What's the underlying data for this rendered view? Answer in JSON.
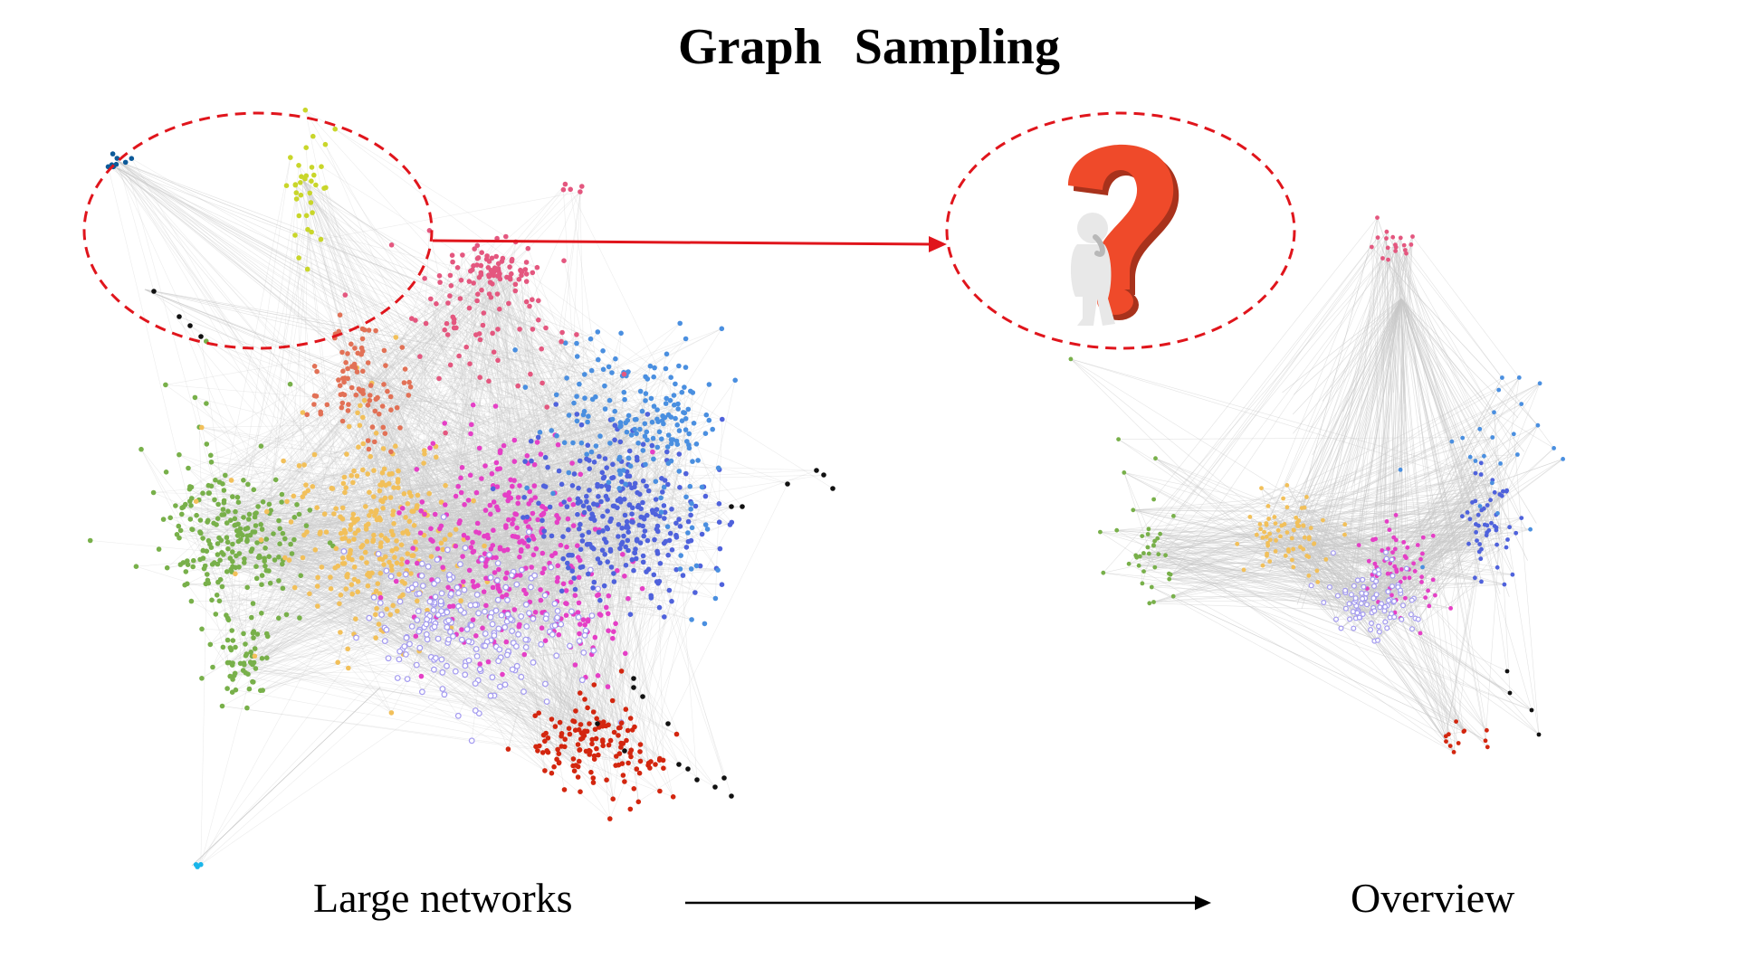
{
  "title": "Graph   Sampling",
  "captions": {
    "left": "Large networks",
    "right": "Overview"
  },
  "colors": {
    "edge": "#c8c8c8",
    "highlight_ellipse": "#e0151c",
    "connector_arrow": "#e0151c",
    "bottom_arrow": "#000000",
    "question_mark": "#ef4a2a",
    "figure": "#e8e8e8"
  },
  "clusters": [
    {
      "name": "green",
      "color": "#78b04a"
    },
    {
      "name": "yellow-orange",
      "color": "#f2c05a"
    },
    {
      "name": "magenta",
      "color": "#e53fc6"
    },
    {
      "name": "lavender",
      "color": "#a39af0"
    },
    {
      "name": "blue",
      "color": "#4f62dc"
    },
    {
      "name": "light-blue",
      "color": "#4a8fe0"
    },
    {
      "name": "pink",
      "color": "#e4577f"
    },
    {
      "name": "salmon",
      "color": "#e27156"
    },
    {
      "name": "red",
      "color": "#d3260f"
    },
    {
      "name": "black",
      "color": "#111111"
    },
    {
      "name": "lime",
      "color": "#c9d62a"
    },
    {
      "name": "navy",
      "color": "#0d5a99"
    },
    {
      "name": "cyan",
      "color": "#1ab6ea"
    }
  ],
  "icons": {
    "thinking": "question-mark-thinking-figure-icon"
  }
}
